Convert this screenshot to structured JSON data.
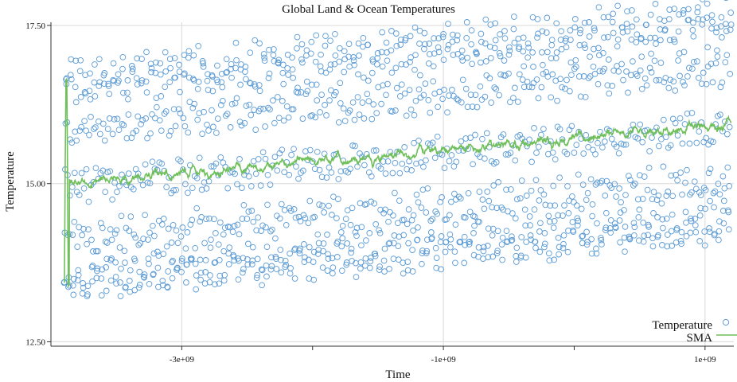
{
  "chart_data": {
    "type": "scatter",
    "title": "Global Land & Ocean Temperatures",
    "xlabel": "Time",
    "ylabel": "Temperature",
    "xlim": [
      -4000000000.0,
      1220000000.0
    ],
    "ylim": [
      12.43,
      17.55
    ],
    "x_ticks": [
      {
        "value": -3000000000.0,
        "label": "-3e+09"
      },
      {
        "value": -1000000000.0,
        "label": "-1e+09"
      },
      {
        "value": 1000000000.0,
        "label": "1e+09"
      }
    ],
    "x_minor_ticks": [
      -2000000000.0,
      0
    ],
    "y_ticks": [
      {
        "value": 12.5,
        "label": "12.50"
      },
      {
        "value": 15.0,
        "label": "15.00"
      },
      {
        "value": 17.5,
        "label": "17.50"
      }
    ],
    "grid": true,
    "legend_position": "bottom-right",
    "x_time_range": [
      -3900000000.0,
      1200000000.0
    ],
    "monthly_cycle_mean": [
      13.35,
      13.55,
      14.15,
      14.95,
      15.85,
      16.55,
      16.75,
      16.45,
      15.85,
      14.95,
      14.05,
      13.45
    ],
    "trend": {
      "start": 0,
      "end": 0.95
    },
    "series": [
      {
        "name": "Temperature",
        "type": "scatter",
        "color": "#5b9bd5"
      },
      {
        "name": "SMA",
        "type": "line",
        "color": "#6fbf5a"
      }
    ]
  }
}
